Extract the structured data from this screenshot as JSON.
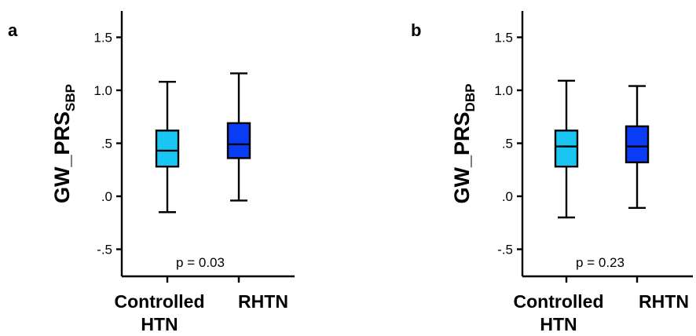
{
  "chart_data": [
    {
      "type": "box",
      "panel": "a",
      "ylabel_main": "GW_PRS",
      "ylabel_sub": "SBP",
      "yticks": [
        {
          "value": 1.5,
          "label": "1.5"
        },
        {
          "value": 1.0,
          "label": "1.0"
        },
        {
          "value": 0.5,
          "label": ".5"
        },
        {
          "value": 0.0,
          "label": ".0"
        },
        {
          "value": -0.5,
          "label": "-.5"
        }
      ],
      "ylim": [
        -0.75,
        1.75
      ],
      "categories": [
        "Controlled HTN",
        "RHTN"
      ],
      "category_lines": [
        [
          "Controlled",
          "HTN"
        ],
        [
          "RHTN"
        ]
      ],
      "boxes": [
        {
          "name": "Controlled HTN",
          "min": -0.15,
          "q1": 0.28,
          "median": 0.43,
          "q3": 0.62,
          "max": 1.08,
          "color": "#19c5f2"
        },
        {
          "name": "RHTN",
          "min": -0.04,
          "q1": 0.36,
          "median": 0.49,
          "q3": 0.69,
          "max": 1.16,
          "color": "#0a3cf5"
        }
      ],
      "annotation": "p = 0.03"
    },
    {
      "type": "box",
      "panel": "b",
      "ylabel_main": "GW_PRS",
      "ylabel_sub": "DBP",
      "yticks": [
        {
          "value": 1.5,
          "label": "1.5"
        },
        {
          "value": 1.0,
          "label": "1.0"
        },
        {
          "value": 0.5,
          "label": ".5"
        },
        {
          "value": 0.0,
          "label": ".0"
        },
        {
          "value": -0.5,
          "label": "-.5"
        }
      ],
      "ylim": [
        -0.75,
        1.75
      ],
      "categories": [
        "Controlled HTN",
        "RHTN"
      ],
      "category_lines": [
        [
          "Controlled",
          "HTN"
        ],
        [
          "RHTN"
        ]
      ],
      "boxes": [
        {
          "name": "Controlled HTN",
          "min": -0.2,
          "q1": 0.28,
          "median": 0.47,
          "q3": 0.62,
          "max": 1.09,
          "color": "#19c5f2"
        },
        {
          "name": "RHTN",
          "min": -0.11,
          "q1": 0.32,
          "median": 0.47,
          "q3": 0.66,
          "max": 1.04,
          "color": "#0a3cf5"
        }
      ],
      "annotation": "p = 0.23"
    }
  ]
}
